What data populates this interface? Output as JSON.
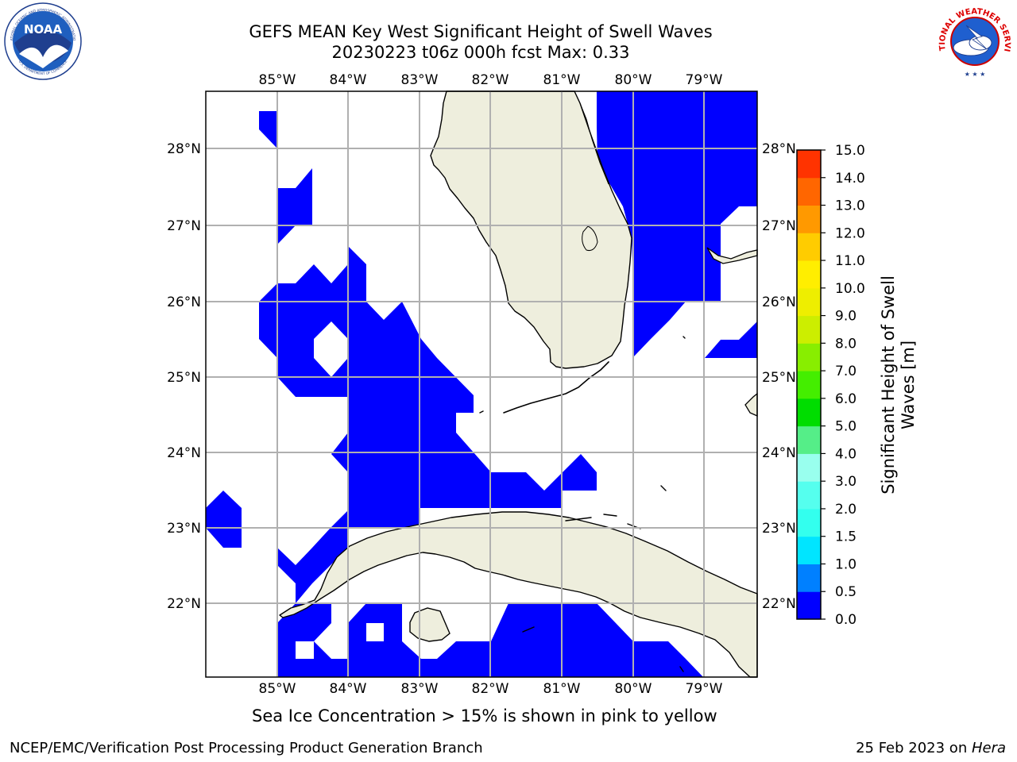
{
  "header": {
    "title_line1": "GEFS MEAN Key West Significant Height of Swell Waves",
    "title_line2": "20230223 t06z 000h fcst   Max: 0.33",
    "left_logo_text": "NOAA",
    "left_logo_ring_top": "NATIONAL OCEANIC AND ATMOSPHERIC ADMINISTRATION",
    "left_logo_ring_bottom": "U.S. DEPARTMENT OF COMMERCE",
    "right_logo_ring": "NATIONAL WEATHER SERVICE"
  },
  "map": {
    "lon_labels": [
      "85°W",
      "84°W",
      "83°W",
      "82°W",
      "81°W",
      "80°W",
      "79°W"
    ],
    "lat_labels": [
      "28°N",
      "27°N",
      "26°N",
      "25°N",
      "24°N",
      "23°N",
      "22°N"
    ],
    "region": "Florida Straits / Key West",
    "extent": {
      "lon_min": -86.0,
      "lon_max": -78.3,
      "lat_min": 21.0,
      "lat_max": 28.8
    },
    "land_color": "#eeeedd",
    "swell_color": "#0000ff"
  },
  "colorbar": {
    "label_line1": "Significant Height of Swell",
    "label_line2": "Waves [m]",
    "ticks": [
      "0.0",
      "0.5",
      "1.0",
      "1.5",
      "2.0",
      "3.0",
      "4.0",
      "5.0",
      "6.0",
      "7.0",
      "8.0",
      "9.0",
      "10.0",
      "11.0",
      "12.0",
      "13.0",
      "14.0",
      "15.0"
    ],
    "colors": [
      "#0000ff",
      "#0080ff",
      "#00e5ff",
      "#33ffee",
      "#55ffee",
      "#99ffee",
      "#55ee88",
      "#00dd00",
      "#44ee00",
      "#88ee00",
      "#ccee00",
      "#eeee00",
      "#ffee00",
      "#ffcc00",
      "#ff9900",
      "#ff6600",
      "#ff3300",
      "#ff0000"
    ]
  },
  "caption": "Sea Ice Concentration > 15% is shown in pink to yellow",
  "footer": {
    "left": "NCEP/EMC/Verification Post Processing Product Generation Branch",
    "right_date": "25 Feb 2023 on ",
    "right_host": "Hera"
  }
}
